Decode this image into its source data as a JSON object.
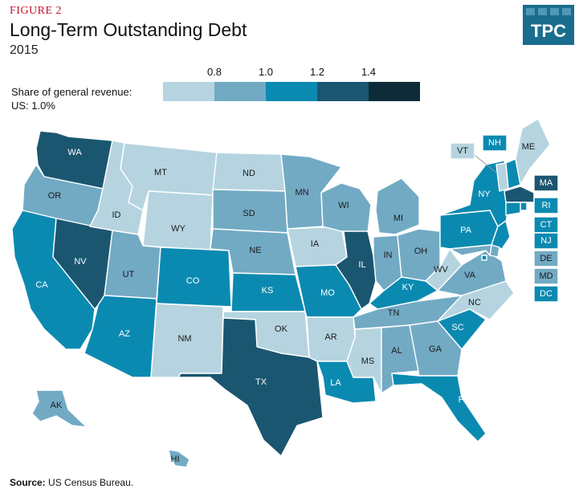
{
  "header": {
    "figure_label": "FIGURE 2",
    "title": "Long-Term Outstanding Debt",
    "year": "2015"
  },
  "logo": {
    "text": "TPC",
    "color": "#1a6d8e"
  },
  "legend": {
    "caption_line1": "Share of general revenue:",
    "caption_line2": "US: 1.0%",
    "ticks": [
      "0.8",
      "1.0",
      "1.2",
      "1.4"
    ],
    "colors": [
      "#b5d4e0",
      "#72aac4",
      "#0b8ab1",
      "#1b5670",
      "#0e2c38"
    ]
  },
  "source": {
    "label": "Source:",
    "text": "US Census Bureau."
  },
  "map_data": {
    "scale_bins": [
      {
        "range": "< 0.8",
        "color": "#b5d4e0"
      },
      {
        "range": "0.8 – 1.0",
        "color": "#72aac4"
      },
      {
        "range": "1.0 – 1.2",
        "color": "#0b8ab1"
      },
      {
        "range": "1.2 – 1.4",
        "color": "#1b5670"
      },
      {
        "range": "> 1.4",
        "color": "#0e2c38"
      }
    ],
    "states": {
      "WA": 3,
      "OR": 1,
      "CA": 2,
      "NV": 3,
      "ID": 0,
      "MT": 0,
      "WY": 0,
      "UT": 1,
      "AZ": 2,
      "CO": 2,
      "NM": 0,
      "ND": 0,
      "SD": 1,
      "NE": 1,
      "KS": 2,
      "OK": 0,
      "TX": 3,
      "MN": 1,
      "IA": 0,
      "MO": 2,
      "AR": 0,
      "LA": 2,
      "WI": 1,
      "IL": 3,
      "MI": 1,
      "IN": 1,
      "OH": 1,
      "KY": 2,
      "TN": 1,
      "MS": 0,
      "AL": 1,
      "GA": 1,
      "FL": 2,
      "SC": 2,
      "NC": 0,
      "VA": 1,
      "WV": 0,
      "PA": 2,
      "NY": 2,
      "ME": 0,
      "VT": 0,
      "NH": 2,
      "MA": 3,
      "RI": 2,
      "CT": 2,
      "NJ": 2,
      "DE": 1,
      "MD": 1,
      "DC": 2,
      "AK": 1,
      "HI": 1
    }
  }
}
